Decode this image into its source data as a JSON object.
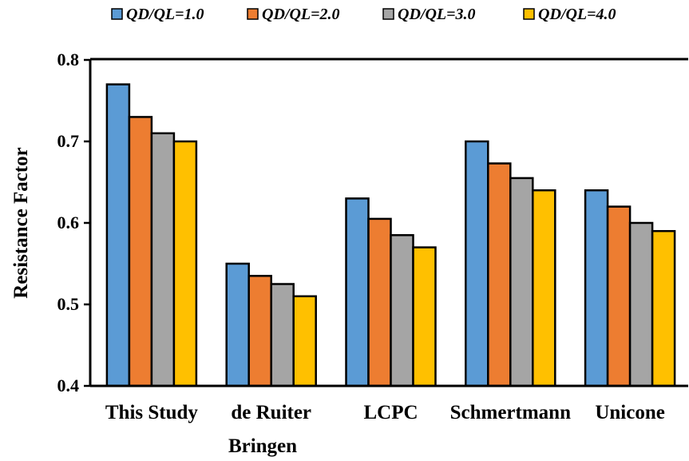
{
  "chart_data": {
    "type": "bar",
    "categories": [
      "This Study",
      "de Ruiter",
      "LCPC",
      "Schmertmann",
      "Unicone"
    ],
    "series": [
      {
        "name": "QD/QL=1.0",
        "values": [
          0.77,
          0.55,
          0.63,
          0.7,
          0.64
        ],
        "color": "#5B9BD5"
      },
      {
        "name": "QD/QL=2.0",
        "values": [
          0.73,
          0.535,
          0.605,
          0.673,
          0.62
        ],
        "color": "#ED7D31"
      },
      {
        "name": "QD/QL=3.0",
        "values": [
          0.71,
          0.525,
          0.585,
          0.655,
          0.6
        ],
        "color": "#A5A5A5"
      },
      {
        "name": "QD/QL=4.0",
        "values": [
          0.7,
          0.51,
          0.57,
          0.64,
          0.59
        ],
        "color": "#FFC000"
      }
    ],
    "xlabel": "Bringen",
    "ylabel": "Resistance Factor",
    "ylim": [
      0.4,
      0.8
    ],
    "yticks": [
      "0.4",
      "0.5",
      "0.6",
      "0.7",
      "0.8"
    ],
    "grid": false,
    "legend_position": "top"
  }
}
